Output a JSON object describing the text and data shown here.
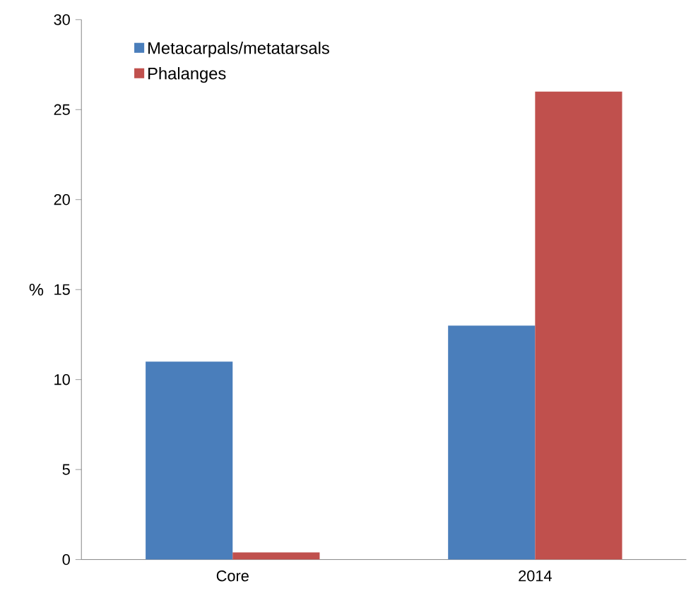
{
  "chart_data": {
    "type": "bar",
    "ylabel": "%",
    "categories": [
      "Core",
      "2014"
    ],
    "series": [
      {
        "name": "Metacarpals/metatarsals",
        "color": "#4a7ebb",
        "values": [
          11,
          13
        ]
      },
      {
        "name": "Phalanges",
        "color": "#c0504d",
        "values": [
          0.4,
          26
        ]
      }
    ],
    "ylim": [
      0,
      30
    ],
    "yticks": [
      0,
      5,
      10,
      15,
      20,
      25,
      30
    ],
    "legend": "top left"
  }
}
